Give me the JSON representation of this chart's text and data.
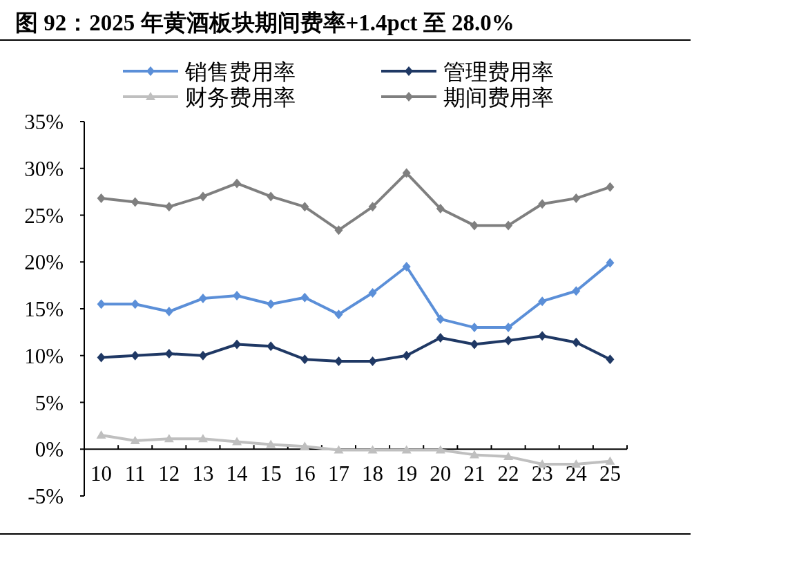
{
  "chart_data": {
    "type": "line",
    "title": "图 92：2025 年黄酒板块期间费率+1.4pct 至 28.0%",
    "categories": [
      "10",
      "11",
      "12",
      "13",
      "14",
      "15",
      "16",
      "17",
      "18",
      "19",
      "20",
      "21",
      "22",
      "23",
      "24",
      "25"
    ],
    "series": [
      {
        "name": "销售费用率",
        "color": "#5b8fd8",
        "marker": "diamond",
        "values": [
          15.5,
          15.5,
          14.7,
          16.1,
          16.4,
          15.5,
          16.2,
          14.4,
          16.7,
          19.5,
          13.9,
          13.0,
          13.0,
          15.8,
          16.9,
          19.9
        ]
      },
      {
        "name": "管理费用率",
        "color": "#1f3864",
        "marker": "diamond",
        "values": [
          9.8,
          10.0,
          10.2,
          10.0,
          11.2,
          11.0,
          9.6,
          9.4,
          9.4,
          10.0,
          11.9,
          11.2,
          11.6,
          12.1,
          11.4,
          9.6
        ]
      },
      {
        "name": "财务费用率",
        "color": "#bfbfbf",
        "marker": "triangle",
        "values": [
          1.5,
          0.9,
          1.1,
          1.1,
          0.8,
          0.5,
          0.3,
          -0.1,
          -0.1,
          -0.1,
          -0.1,
          -0.6,
          -0.8,
          -1.6,
          -1.6,
          -1.3
        ]
      },
      {
        "name": "期间费用率",
        "color": "#7f7f7f",
        "marker": "diamond",
        "values": [
          26.8,
          26.4,
          25.9,
          27.0,
          28.4,
          27.0,
          25.9,
          23.4,
          25.9,
          29.5,
          25.7,
          23.9,
          23.9,
          26.2,
          26.8,
          28.0
        ]
      }
    ],
    "ylim": [
      -5,
      35
    ],
    "yticks": [
      {
        "value": -5,
        "label": "-5%"
      },
      {
        "value": 0,
        "label": "0%"
      },
      {
        "value": 5,
        "label": "5%"
      },
      {
        "value": 10,
        "label": "10%"
      },
      {
        "value": 15,
        "label": "15%"
      },
      {
        "value": 20,
        "label": "20%"
      },
      {
        "value": 25,
        "label": "25%"
      },
      {
        "value": 30,
        "label": "30%"
      },
      {
        "value": 35,
        "label": "35%"
      }
    ],
    "grid": false,
    "legend": "top",
    "line_style": "solid"
  }
}
